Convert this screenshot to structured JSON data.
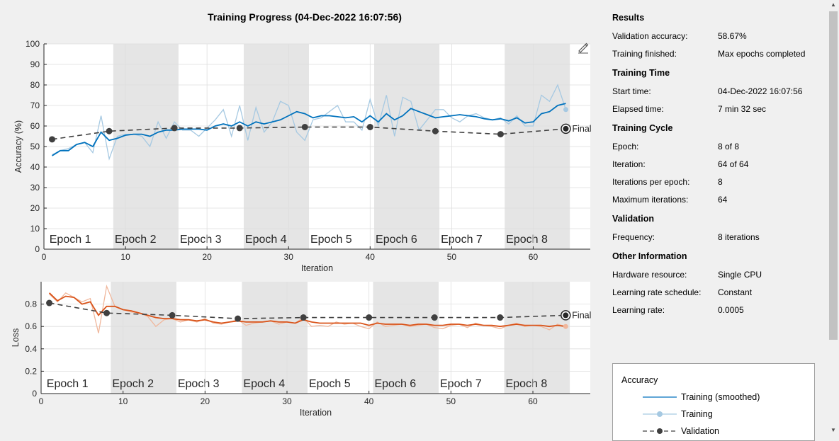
{
  "title": "Training Progress (04-Dec-2022 16:07:56)",
  "results": {
    "heading": "Results",
    "rows": [
      {
        "label": "Validation accuracy:",
        "value": "58.67%"
      },
      {
        "label": "Training finished:",
        "value": "Max epochs completed"
      }
    ]
  },
  "training_time": {
    "heading": "Training Time",
    "rows": [
      {
        "label": "Start time:",
        "value": "04-Dec-2022 16:07:56"
      },
      {
        "label": "Elapsed time:",
        "value": "7 min 32 sec"
      }
    ]
  },
  "training_cycle": {
    "heading": "Training Cycle",
    "rows": [
      {
        "label": "Epoch:",
        "value": "8 of 8"
      },
      {
        "label": "Iteration:",
        "value": "64 of 64"
      },
      {
        "label": "Iterations per epoch:",
        "value": "8"
      },
      {
        "label": "Maximum iterations:",
        "value": "64"
      }
    ]
  },
  "validation": {
    "heading": "Validation",
    "rows": [
      {
        "label": "Frequency:",
        "value": "8 iterations"
      }
    ]
  },
  "other": {
    "heading": "Other Information",
    "rows": [
      {
        "label": "Hardware resource:",
        "value": "Single CPU"
      },
      {
        "label": "Learning rate schedule:",
        "value": "Constant"
      },
      {
        "label": "Learning rate:",
        "value": "0.0005"
      }
    ]
  },
  "legend": {
    "title": "Accuracy",
    "items": [
      "Training (smoothed)",
      "Training",
      "Validation"
    ]
  },
  "icons": [
    "edit-plot-icon",
    "scroll-up-arrow-icon",
    "scroll-down-arrow-icon"
  ],
  "colors": {
    "accuracy": "#0072bd",
    "accuracy_raw": "#a6c9e2",
    "loss": "#d95319",
    "loss_raw": "#f0b79c",
    "validation": "#404040",
    "epoch_shade": "#e5e5e5"
  },
  "chart_data": [
    {
      "type": "line",
      "name": "accuracy",
      "xlabel": "Iteration",
      "ylabel": "Accuracy (%)",
      "xlim": [
        0,
        67
      ],
      "ylim": [
        0,
        100
      ],
      "xticks": [
        0,
        10,
        20,
        30,
        40,
        50,
        60
      ],
      "yticks": [
        0,
        10,
        20,
        30,
        40,
        50,
        60,
        70,
        80,
        90,
        100
      ],
      "epochs": [
        "Epoch 1",
        "Epoch 2",
        "Epoch 3",
        "Epoch 4",
        "Epoch 5",
        "Epoch 6",
        "Epoch 7",
        "Epoch 8"
      ],
      "final_label": "Final",
      "series": [
        {
          "name": "Training",
          "x": [
            1,
            2,
            3,
            4,
            5,
            6,
            7,
            8,
            9,
            10,
            11,
            12,
            13,
            14,
            15,
            16,
            17,
            18,
            19,
            20,
            21,
            22,
            23,
            24,
            25,
            26,
            27,
            28,
            29,
            30,
            31,
            32,
            33,
            34,
            35,
            36,
            37,
            38,
            39,
            40,
            41,
            42,
            43,
            44,
            45,
            46,
            47,
            48,
            49,
            50,
            51,
            52,
            53,
            54,
            55,
            56,
            57,
            58,
            59,
            60,
            61,
            62,
            63,
            64
          ],
          "y": [
            46,
            48,
            49,
            51,
            52,
            47,
            65,
            44,
            55,
            56,
            56,
            55,
            50,
            62,
            54,
            62,
            58,
            58,
            55,
            59,
            63,
            68,
            55,
            70,
            53,
            69,
            57,
            62,
            72,
            70,
            57,
            53,
            63,
            64,
            67,
            70,
            62,
            62,
            58,
            73,
            60,
            75,
            55,
            74,
            72,
            58,
            63,
            68,
            68,
            64,
            62,
            65,
            66,
            64,
            63,
            64,
            61,
            65,
            60,
            60,
            75,
            72,
            80,
            68
          ]
        },
        {
          "name": "Training (smoothed)",
          "x": [
            1,
            2,
            3,
            4,
            5,
            6,
            7,
            8,
            9,
            10,
            11,
            12,
            13,
            14,
            15,
            16,
            17,
            18,
            19,
            20,
            21,
            22,
            23,
            24,
            25,
            26,
            27,
            28,
            29,
            30,
            31,
            32,
            33,
            34,
            35,
            36,
            37,
            38,
            39,
            40,
            41,
            42,
            43,
            44,
            45,
            46,
            47,
            48,
            49,
            50,
            51,
            52,
            53,
            54,
            55,
            56,
            57,
            58,
            59,
            60,
            61,
            62,
            63,
            64
          ],
          "y": [
            45.5,
            48,
            48,
            51,
            52,
            50,
            57,
            53,
            54,
            55.5,
            56,
            56,
            55,
            57,
            58,
            58,
            58.5,
            58.5,
            58.5,
            58,
            60,
            61,
            60,
            62,
            60,
            62,
            61,
            62,
            63,
            65,
            67,
            66,
            64,
            65,
            65,
            64.5,
            64,
            64.5,
            62,
            65,
            62,
            66,
            63,
            65,
            68.5,
            67,
            65.5,
            64,
            64.5,
            65,
            65.5,
            65,
            64.5,
            63.5,
            63,
            63.5,
            62.5,
            64,
            61.5,
            62,
            66,
            67,
            70,
            71
          ]
        },
        {
          "name": "Validation",
          "x": [
            1,
            8,
            16,
            24,
            32,
            40,
            48,
            56,
            64
          ],
          "y": [
            53.5,
            57.5,
            59,
            59,
            59.5,
            59.5,
            57.5,
            56,
            58.67
          ]
        }
      ]
    },
    {
      "type": "line",
      "name": "loss",
      "xlabel": "Iteration",
      "ylabel": "Loss",
      "xlim": [
        0,
        67
      ],
      "ylim": [
        0,
        1
      ],
      "xticks": [
        0,
        10,
        20,
        30,
        40,
        50,
        60
      ],
      "yticks": [
        0,
        0.2,
        0.4,
        0.6,
        0.8
      ],
      "epochs": [
        "Epoch 1",
        "Epoch 2",
        "Epoch 3",
        "Epoch 4",
        "Epoch 5",
        "Epoch 6",
        "Epoch 7",
        "Epoch 8"
      ],
      "final_label": "Final",
      "series": [
        {
          "name": "Training",
          "x": [
            1,
            2,
            3,
            4,
            5,
            6,
            7,
            8,
            9,
            10,
            11,
            12,
            13,
            14,
            15,
            16,
            17,
            18,
            19,
            20,
            21,
            22,
            23,
            24,
            25,
            26,
            27,
            28,
            29,
            30,
            31,
            32,
            33,
            34,
            35,
            36,
            37,
            38,
            39,
            40,
            41,
            42,
            43,
            44,
            45,
            46,
            47,
            48,
            49,
            50,
            51,
            52,
            53,
            54,
            55,
            56,
            57,
            58,
            59,
            60,
            61,
            62,
            63,
            64
          ],
          "y": [
            0.89,
            0.82,
            0.9,
            0.86,
            0.82,
            0.85,
            0.54,
            0.96,
            0.78,
            0.75,
            0.73,
            0.72,
            0.69,
            0.6,
            0.66,
            0.67,
            0.64,
            0.66,
            0.64,
            0.67,
            0.63,
            0.62,
            0.64,
            0.66,
            0.61,
            0.63,
            0.64,
            0.65,
            0.62,
            0.64,
            0.63,
            0.68,
            0.6,
            0.61,
            0.6,
            0.64,
            0.62,
            0.63,
            0.6,
            0.58,
            0.64,
            0.6,
            0.61,
            0.62,
            0.6,
            0.61,
            0.62,
            0.59,
            0.58,
            0.61,
            0.62,
            0.59,
            0.63,
            0.61,
            0.6,
            0.58,
            0.61,
            0.63,
            0.6,
            0.61,
            0.6,
            0.57,
            0.62,
            0.6
          ]
        },
        {
          "name": "Training (smoothed)",
          "x": [
            1,
            2,
            3,
            4,
            5,
            6,
            7,
            8,
            9,
            10,
            11,
            12,
            13,
            14,
            15,
            16,
            17,
            18,
            19,
            20,
            21,
            22,
            23,
            24,
            25,
            26,
            27,
            28,
            29,
            30,
            31,
            32,
            33,
            34,
            35,
            36,
            37,
            38,
            39,
            40,
            41,
            42,
            43,
            44,
            45,
            46,
            47,
            48,
            49,
            50,
            51,
            52,
            53,
            54,
            55,
            56,
            57,
            58,
            59,
            60,
            61,
            62,
            63,
            64
          ],
          "y": [
            0.9,
            0.83,
            0.87,
            0.86,
            0.8,
            0.82,
            0.7,
            0.78,
            0.78,
            0.75,
            0.74,
            0.72,
            0.7,
            0.68,
            0.67,
            0.67,
            0.66,
            0.66,
            0.65,
            0.66,
            0.64,
            0.63,
            0.64,
            0.65,
            0.64,
            0.64,
            0.64,
            0.65,
            0.64,
            0.64,
            0.63,
            0.66,
            0.64,
            0.63,
            0.63,
            0.63,
            0.63,
            0.63,
            0.63,
            0.61,
            0.63,
            0.62,
            0.62,
            0.62,
            0.61,
            0.62,
            0.62,
            0.61,
            0.61,
            0.62,
            0.62,
            0.61,
            0.62,
            0.61,
            0.61,
            0.6,
            0.61,
            0.62,
            0.61,
            0.61,
            0.61,
            0.6,
            0.61,
            0.6
          ]
        },
        {
          "name": "Validation",
          "x": [
            1,
            8,
            16,
            24,
            32,
            40,
            48,
            56,
            64
          ],
          "y": [
            0.81,
            0.72,
            0.7,
            0.67,
            0.68,
            0.68,
            0.68,
            0.68,
            0.7
          ]
        }
      ]
    }
  ]
}
